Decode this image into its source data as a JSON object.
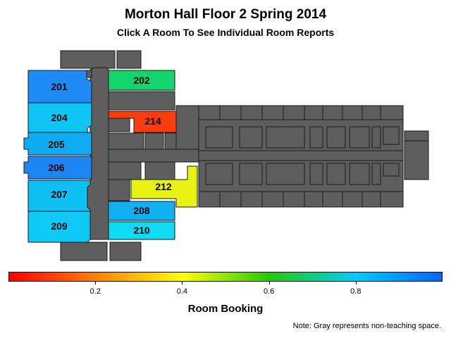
{
  "title": "Morton Hall Floor 2 Spring 2014",
  "subtitle": "Click A Room To See Individual Room Reports",
  "rooms": [
    {
      "id": "201",
      "label": "201",
      "booking": 0.96,
      "color": "#1f8cf5"
    },
    {
      "id": "202",
      "label": "202",
      "booking": 0.68,
      "color": "#14d46c"
    },
    {
      "id": "204",
      "label": "204",
      "booking": 0.86,
      "color": "#0ec4f5"
    },
    {
      "id": "205",
      "label": "205",
      "booking": 0.91,
      "color": "#10aaf2"
    },
    {
      "id": "206",
      "label": "206",
      "booking": 0.97,
      "color": "#1e86f4"
    },
    {
      "id": "207",
      "label": "207",
      "booking": 0.87,
      "color": "#0ec0f4"
    },
    {
      "id": "208",
      "label": "208",
      "booking": 0.9,
      "color": "#10b0f2"
    },
    {
      "id": "209",
      "label": "209",
      "booking": 0.85,
      "color": "#0ec8f5"
    },
    {
      "id": "210",
      "label": "210",
      "booking": 0.84,
      "color": "#0fdcf2"
    },
    {
      "id": "212",
      "label": "212",
      "booking": 0.45,
      "color": "#e8f212"
    },
    {
      "id": "214",
      "label": "214",
      "booking": 0.03,
      "color": "#fa3c0e"
    }
  ],
  "colorbar": {
    "label": "Room Booking",
    "min": 0,
    "max": 1,
    "gradient": [
      "#ff0000",
      "#ff8000",
      "#ffff00",
      "#22cc00",
      "#00ccff",
      "#0066ff"
    ],
    "ticks": [
      "0.2",
      "0.4",
      "0.6",
      "0.8"
    ],
    "tick_values": [
      0.2,
      0.4,
      0.6,
      0.8
    ]
  },
  "note": "Note: Gray represents non-teaching space."
}
